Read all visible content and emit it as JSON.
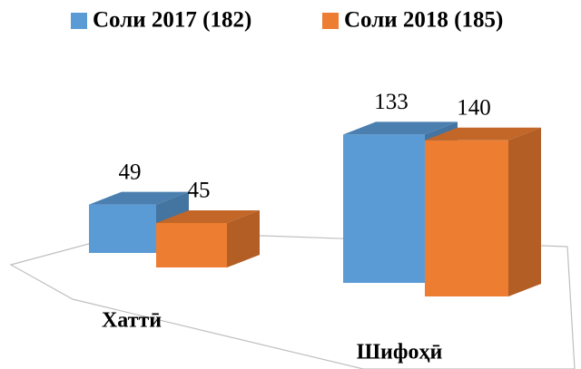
{
  "chart_data": {
    "type": "bar3d",
    "categories": [
      "Хаттӣ",
      "Шифоҳӣ"
    ],
    "series": [
      {
        "name": "Соли 2017 (182)",
        "color": "#5b9bd5",
        "values": [
          49,
          133
        ]
      },
      {
        "name": "Соли 2018 (185)",
        "color": "#ed7d31",
        "values": [
          45,
          140
        ]
      }
    ]
  }
}
